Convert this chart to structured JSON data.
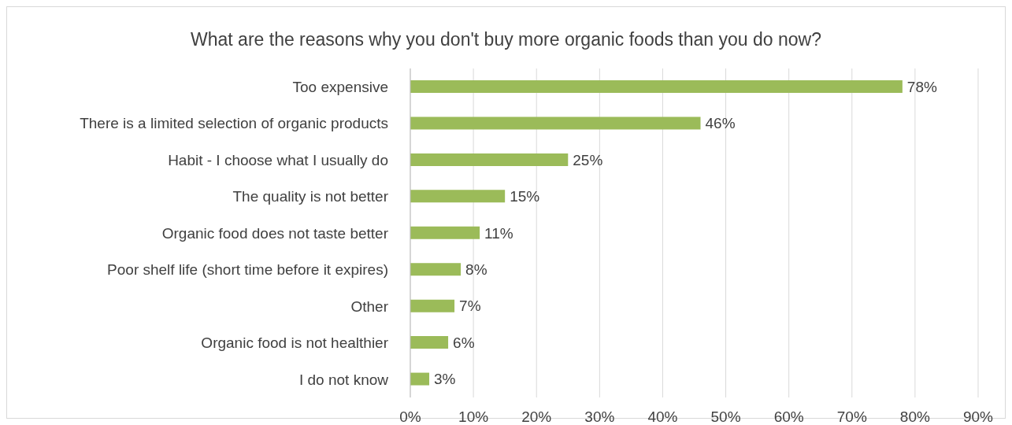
{
  "chart_data": {
    "type": "bar",
    "orientation": "horizontal",
    "title": "What are the reasons why you don't buy more organic foods than you do now?",
    "categories": [
      "Too expensive",
      "There is a limited selection of organic products",
      "Habit - I choose what I usually do",
      "The quality is not better",
      "Organic food does not taste better",
      "Poor shelf life (short time before it expires)",
      "Other",
      "Organic food is not healthier",
      "I do not know"
    ],
    "values": [
      78,
      46,
      25,
      15,
      11,
      8,
      7,
      6,
      3
    ],
    "value_labels": [
      "78%",
      "46%",
      "25%",
      "15%",
      "11%",
      "8%",
      "7%",
      "6%",
      "3%"
    ],
    "color": "#9bbb59",
    "xlim": [
      0,
      90
    ],
    "xticks": [
      {
        "value": 0,
        "label": "0%"
      },
      {
        "value": 10,
        "label": "10%"
      },
      {
        "value": 20,
        "label": "20%"
      },
      {
        "value": 30,
        "label": "30%"
      },
      {
        "value": 40,
        "label": "40%"
      },
      {
        "value": 50,
        "label": "50%"
      },
      {
        "value": 60,
        "label": "60%"
      },
      {
        "value": 70,
        "label": "70%"
      },
      {
        "value": 80,
        "label": "80%"
      },
      {
        "value": 90,
        "label": "90%"
      }
    ],
    "grid": "x",
    "legend": false
  }
}
